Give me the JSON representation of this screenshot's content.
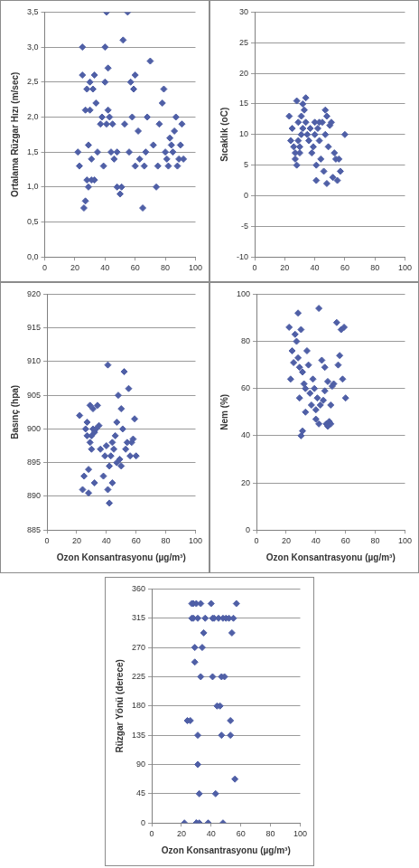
{
  "chart_data": [
    {
      "type": "scatter",
      "y_label": "Ortalama Rüzgar Hızı (m/sec)",
      "color": "#4f5fa6",
      "marker": "diamond",
      "grid": true,
      "xlim": [
        0,
        100
      ],
      "xticks": [
        0,
        20,
        40,
        60,
        80,
        100
      ],
      "ylim": [
        0,
        3.5
      ],
      "yticks": [
        {
          "value": 0,
          "label": "0,0"
        },
        {
          "value": 0.5,
          "label": "0,5"
        },
        {
          "value": 1,
          "label": "1,0"
        },
        {
          "value": 1.5,
          "label": "1,5"
        },
        {
          "value": 2,
          "label": "2,0"
        },
        {
          "value": 2.5,
          "label": "2,5"
        },
        {
          "value": 3,
          "label": "3,0"
        },
        {
          "value": 3.5,
          "label": "3,5"
        }
      ],
      "x": [
        22,
        23,
        25,
        25,
        26,
        27,
        27,
        28,
        28,
        29,
        29,
        30,
        30,
        31,
        31,
        32,
        33,
        33,
        34,
        35,
        37,
        38,
        39,
        40,
        40,
        41,
        41,
        42,
        42,
        43,
        44,
        45,
        46,
        48,
        48,
        50,
        51,
        52,
        53,
        55,
        56,
        57,
        58,
        59,
        60,
        60,
        62,
        63,
        65,
        66,
        67,
        68,
        70,
        72,
        74,
        75,
        76,
        78,
        79,
        80,
        81,
        82,
        83,
        84,
        85,
        86,
        87,
        88,
        89,
        90,
        91,
        92
      ],
      "values": [
        1.5,
        1.3,
        3.0,
        2.6,
        0.7,
        0.8,
        2.1,
        1.1,
        2.4,
        1.6,
        1.0,
        2.1,
        2.5,
        1.1,
        1.4,
        2.4,
        1.1,
        2.6,
        2.2,
        1.5,
        1.9,
        2.0,
        1.3,
        2.5,
        3.0,
        3.5,
        1.9,
        2.7,
        2.1,
        2.0,
        1.5,
        1.9,
        1.4,
        1.0,
        1.5,
        0.9,
        1.0,
        3.1,
        1.9,
        3.5,
        1.5,
        2.5,
        2.0,
        2.4,
        2.6,
        1.3,
        1.8,
        1.4,
        0.7,
        1.3,
        1.5,
        2.0,
        2.8,
        1.6,
        1.0,
        1.3,
        1.9,
        2.2,
        2.4,
        1.5,
        1.4,
        1.3,
        1.7,
        1.6,
        1.5,
        1.8,
        2.0,
        1.3,
        1.4,
        1.6,
        1.9,
        1.4
      ]
    },
    {
      "type": "scatter",
      "y_label": "Sıcaklık (oC)",
      "color": "#4f5fa6",
      "marker": "diamond",
      "grid": true,
      "xlim": [
        0,
        100
      ],
      "xticks": [
        0,
        20,
        40,
        60,
        80,
        100
      ],
      "ylim": [
        -10,
        30
      ],
      "yticks": [
        -10,
        -5,
        0,
        5,
        10,
        15,
        20,
        25,
        30
      ],
      "x": [
        23,
        24,
        25,
        26,
        27,
        27,
        28,
        28,
        29,
        29,
        30,
        30,
        31,
        31,
        32,
        32,
        33,
        34,
        34,
        35,
        36,
        37,
        38,
        39,
        40,
        40,
        41,
        41,
        42,
        43,
        43,
        44,
        45,
        46,
        47,
        47,
        48,
        48,
        49,
        50,
        51,
        52,
        53,
        54,
        55,
        56,
        57,
        60
      ],
      "values": [
        13,
        9,
        11,
        8,
        6,
        7,
        5,
        15.5,
        9,
        12,
        7,
        8,
        10,
        13,
        11,
        15,
        14,
        12,
        16,
        10,
        9,
        11,
        7,
        8,
        12,
        10,
        2.5,
        5,
        11,
        12,
        9,
        6,
        12,
        4,
        14,
        10,
        2,
        13,
        8,
        11.5,
        12,
        3,
        7,
        6,
        2.5,
        6,
        4,
        10
      ]
    },
    {
      "type": "scatter",
      "y_label": "Basınç (hpa)",
      "x_label": "Ozon Konsantrasyonu (µg/m³)",
      "color": "#4f5fa6",
      "marker": "diamond",
      "grid": true,
      "xlim": [
        0,
        100
      ],
      "xticks": [
        0,
        20,
        40,
        60,
        80,
        100
      ],
      "ylim": [
        885,
        920
      ],
      "yticks": [
        885,
        890,
        895,
        900,
        905,
        910,
        915,
        920
      ],
      "x": [
        22,
        24,
        25,
        26,
        27,
        27,
        28,
        28,
        29,
        29,
        30,
        30,
        31,
        31,
        32,
        32,
        33,
        34,
        35,
        36,
        38,
        39,
        40,
        41,
        41,
        42,
        42,
        43,
        44,
        44,
        45,
        46,
        47,
        47,
        48,
        49,
        50,
        50,
        51,
        52,
        53,
        54,
        55,
        56,
        57,
        58,
        59,
        60
      ],
      "values": [
        902,
        891,
        893,
        900,
        899,
        901,
        890.5,
        894,
        898,
        903.5,
        897,
        899,
        900,
        903,
        899.5,
        892,
        900,
        903.5,
        900.5,
        897,
        893,
        896,
        897.5,
        891,
        909.5,
        889,
        894.5,
        896,
        892,
        898,
        897,
        899,
        895,
        901,
        905,
        895.5,
        894.5,
        903,
        900,
        908.5,
        897,
        898,
        906,
        896,
        898,
        898.5,
        901.5,
        896
      ]
    },
    {
      "type": "scatter",
      "y_label": "Nem (%)",
      "x_label": "Ozon Konsantrasyonu (µg/m³)",
      "color": "#4f5fa6",
      "marker": "diamond",
      "grid": true,
      "xlim": [
        0,
        100
      ],
      "xticks": [
        0,
        20,
        40,
        60,
        80,
        100
      ],
      "ylim": [
        0,
        100
      ],
      "yticks": [
        0,
        20,
        40,
        60,
        80,
        100
      ],
      "x": [
        22,
        23,
        24,
        25,
        26,
        27,
        28,
        28,
        29,
        29,
        30,
        30,
        31,
        31,
        32,
        33,
        33,
        34,
        35,
        36,
        37,
        38,
        39,
        40,
        40,
        41,
        42,
        42,
        43,
        44,
        45,
        46,
        46,
        47,
        48,
        48,
        49,
        50,
        50,
        51,
        52,
        54,
        55,
        56,
        57,
        58,
        59,
        60
      ],
      "values": [
        86,
        64,
        76,
        71,
        83,
        80,
        73,
        92,
        69,
        56,
        40,
        85,
        67,
        42,
        62,
        60,
        50,
        76,
        70,
        58,
        53,
        64,
        60,
        51,
        47,
        56,
        94,
        45,
        53,
        72,
        55,
        69,
        59,
        45,
        63,
        44,
        46,
        45,
        53,
        61,
        62,
        88,
        70,
        74,
        85,
        64,
        86,
        56
      ]
    },
    {
      "type": "scatter",
      "y_label": "Rüzgar Yönü (derece)",
      "x_label": "Ozon Konsantrasyonu (µg/m³)",
      "color": "#4f5fa6",
      "marker": "diamond",
      "grid": true,
      "xlim": [
        0,
        100
      ],
      "xticks": [
        0,
        20,
        40,
        60,
        80,
        100
      ],
      "ylim": [
        0,
        360
      ],
      "yticks": [
        0,
        45,
        90,
        135,
        180,
        225,
        270,
        315,
        360
      ],
      "x": [
        22,
        24,
        26,
        27,
        27,
        28,
        28,
        29,
        29,
        30,
        30,
        30,
        31,
        31,
        31,
        32,
        32,
        33,
        33,
        34,
        35,
        36,
        38,
        40,
        41,
        41,
        42,
        43,
        44,
        45,
        46,
        47,
        47,
        48,
        48,
        49,
        50,
        52,
        53,
        53,
        54,
        55,
        56,
        57
      ],
      "values": [
        0,
        157.5,
        157.5,
        315,
        337.5,
        315,
        337.5,
        247.5,
        270,
        0,
        0,
        337.5,
        315,
        90,
        135,
        45,
        0,
        225,
        337.5,
        270,
        292.5,
        315,
        0,
        337.5,
        225,
        315,
        315,
        45,
        180,
        315,
        180,
        225,
        135,
        315,
        0,
        225,
        315,
        315,
        157.5,
        135,
        292.5,
        315,
        67.5,
        337.5
      ]
    }
  ]
}
